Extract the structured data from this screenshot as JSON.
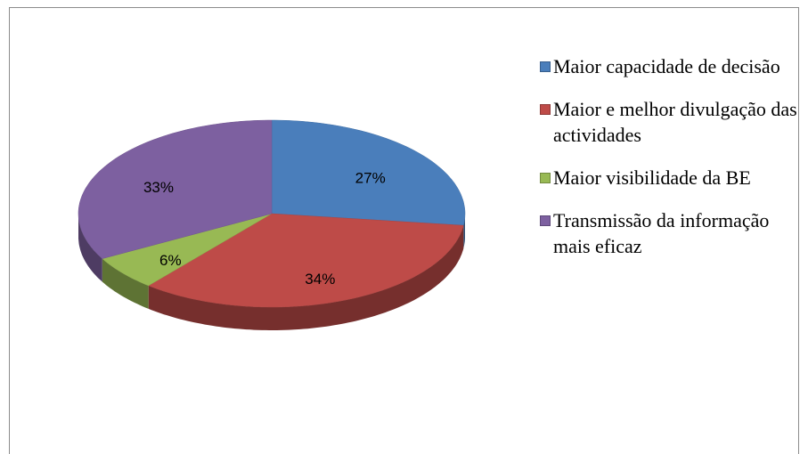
{
  "chart_data": {
    "type": "pie",
    "categories": [
      "Maior capacidade de decisão",
      "Maior e melhor divulgação das actividades",
      "Maior visibilidade da BE",
      "Transmissão da informação mais eficaz"
    ],
    "values": [
      27,
      34,
      6,
      33
    ],
    "value_labels": [
      "27%",
      "34%",
      "6%",
      "33%"
    ],
    "colors": [
      "#4a7ebb",
      "#be4b48",
      "#98b954",
      "#7d60a0"
    ],
    "legend": "right"
  }
}
